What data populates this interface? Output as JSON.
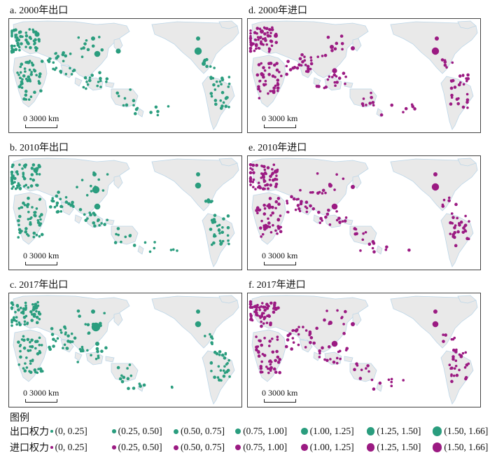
{
  "panels": [
    {
      "id": "a",
      "title": "a. 2000年出口",
      "type": "export"
    },
    {
      "id": "d",
      "title": "d. 2000年进口",
      "type": "import"
    },
    {
      "id": "b",
      "title": "b. 2010年出口",
      "type": "export"
    },
    {
      "id": "e",
      "title": "e. 2010年进口",
      "type": "import"
    },
    {
      "id": "c",
      "title": "c. 2017年出口",
      "type": "export"
    },
    {
      "id": "f",
      "title": "f. 2017年进口",
      "type": "import"
    }
  ],
  "scalebar": {
    "label": "0   3000 km"
  },
  "legend": {
    "title": "图例",
    "export_label": "出口权力",
    "import_label": "进口权力",
    "classes": [
      "(0, 0.25]",
      "(0.25, 0.50]",
      "(0.50, 0.75]",
      "(0.75, 1.00]",
      "(1.00, 1.25]",
      "(1.25, 1.50]",
      "(1.50, 1.66]"
    ]
  },
  "colors": {
    "export": "#2a9d7e",
    "import": "#9b1a82",
    "land": "#e9e9e9",
    "coast": "#bcd6e8"
  }
}
